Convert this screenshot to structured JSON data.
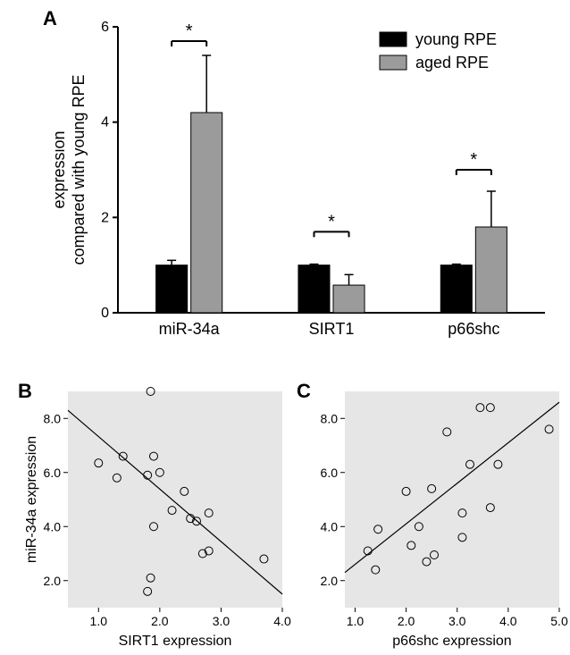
{
  "panelA": {
    "label": "A",
    "type": "bar",
    "ylabel_line1": "expression",
    "ylabel_line2": "compared with young RPE",
    "ylim": [
      0,
      6
    ],
    "yticks": [
      0,
      2,
      4,
      6
    ],
    "categories": [
      "miR-34a",
      "SIRT1",
      "p66shc"
    ],
    "legend": [
      {
        "label": "young RPE",
        "color": "#000000"
      },
      {
        "label": "aged RPE",
        "color": "#9b9b9b"
      }
    ],
    "groups": [
      {
        "young": 1.0,
        "young_err": 0.1,
        "aged": 4.2,
        "aged_err": 1.2,
        "sig": "*",
        "sig_y": 5.7
      },
      {
        "young": 1.0,
        "young_err": 0.02,
        "aged": 0.58,
        "aged_err": 0.22,
        "sig": "*",
        "sig_y": 1.7
      },
      {
        "young": 1.0,
        "young_err": 0.02,
        "aged": 1.8,
        "aged_err": 0.75,
        "sig": "*",
        "sig_y": 3.0
      }
    ],
    "bar_colors": {
      "young": "#000000",
      "aged": "#9b9b9b"
    },
    "bar_border": "#000000",
    "bar_width": 0.36,
    "axis_color": "#000000",
    "label_fontsize": 18,
    "tick_fontsize": 16,
    "category_fontsize": 18,
    "legend_fontsize": 18,
    "background_color": "#ffffff"
  },
  "panelB": {
    "label": "B",
    "type": "scatter",
    "xlabel": "SIRT1 expression",
    "ylabel": "miR-34a expression",
    "xlim": [
      0.5,
      4.0
    ],
    "xticks": [
      1.0,
      2.0,
      3.0,
      4.0
    ],
    "ylim": [
      1.0,
      9.0
    ],
    "yticks": [
      2.0,
      4.0,
      6.0,
      8.0
    ],
    "points": [
      [
        1.0,
        6.35
      ],
      [
        1.3,
        5.8
      ],
      [
        1.4,
        6.6
      ],
      [
        1.85,
        9.0
      ],
      [
        1.8,
        1.6
      ],
      [
        1.8,
        5.9
      ],
      [
        1.85,
        2.1
      ],
      [
        1.9,
        6.6
      ],
      [
        1.9,
        4.0
      ],
      [
        2.0,
        6.0
      ],
      [
        2.2,
        4.6
      ],
      [
        2.4,
        5.3
      ],
      [
        2.5,
        4.3
      ],
      [
        2.6,
        4.2
      ],
      [
        2.7,
        3.0
      ],
      [
        2.8,
        4.5
      ],
      [
        2.8,
        3.1
      ],
      [
        3.7,
        2.8
      ]
    ],
    "fit_line": {
      "x1": 0.5,
      "y1": 8.3,
      "x2": 4.0,
      "y2": 1.5
    },
    "marker_size": 4.5,
    "marker_fill": "none",
    "marker_stroke": "#000000",
    "line_color": "#000000",
    "line_width": 1.2,
    "background_color": "#e6e6e6",
    "axis_color": "#000000",
    "label_fontsize": 16,
    "tick_fontsize": 14
  },
  "panelC": {
    "label": "C",
    "type": "scatter",
    "xlabel": "p66shc expression",
    "ylabel": "",
    "xlim": [
      0.8,
      5.0
    ],
    "xticks": [
      1.0,
      2.0,
      3.0,
      4.0,
      5.0
    ],
    "ylim": [
      1.0,
      9.0
    ],
    "yticks": [
      2.0,
      4.0,
      6.0,
      8.0
    ],
    "points": [
      [
        1.25,
        3.1
      ],
      [
        1.4,
        2.4
      ],
      [
        1.45,
        3.9
      ],
      [
        2.0,
        5.3
      ],
      [
        2.1,
        3.3
      ],
      [
        2.25,
        4.0
      ],
      [
        2.4,
        2.7
      ],
      [
        2.55,
        2.95
      ],
      [
        2.5,
        5.4
      ],
      [
        2.8,
        7.5
      ],
      [
        3.1,
        3.6
      ],
      [
        3.1,
        4.5
      ],
      [
        3.45,
        8.4
      ],
      [
        3.25,
        6.3
      ],
      [
        3.65,
        8.4
      ],
      [
        3.65,
        4.7
      ],
      [
        3.8,
        6.3
      ],
      [
        4.8,
        7.6
      ]
    ],
    "fit_line": {
      "x1": 0.8,
      "y1": 2.3,
      "x2": 5.0,
      "y2": 8.6
    },
    "marker_size": 4.5,
    "marker_fill": "none",
    "marker_stroke": "#000000",
    "line_color": "#000000",
    "line_width": 1.2,
    "background_color": "#e6e6e6",
    "axis_color": "#000000",
    "label_fontsize": 16,
    "tick_fontsize": 14
  }
}
